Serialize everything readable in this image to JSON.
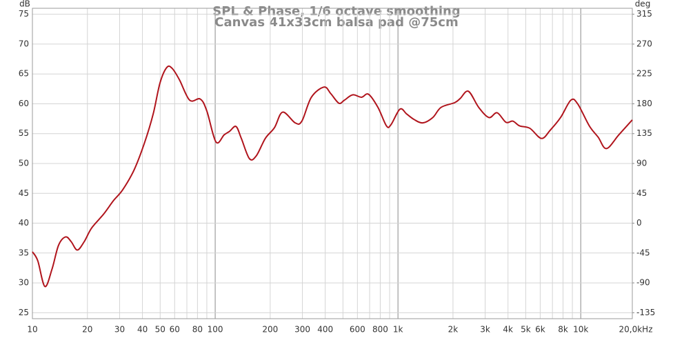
{
  "chart_data": {
    "type": "line",
    "title": "SPL & Phase, 1/6 octave smoothing",
    "subtitle": "Canvas 41x33cm balsa pad @75cm",
    "y_label": "dB",
    "y2_label": "deg",
    "xscale": "log",
    "grid": true,
    "xlim": [
      10,
      20000
    ],
    "ylim": [
      24,
      76
    ],
    "y2lim": [
      -144,
      324
    ],
    "xticks": [
      10,
      20,
      30,
      40,
      50,
      60,
      80,
      100,
      200,
      300,
      400,
      600,
      800,
      {
        "value": 1000,
        "label": "1k"
      },
      {
        "value": 2000,
        "label": "2k"
      },
      {
        "value": 3000,
        "label": "3k"
      },
      {
        "value": 4000,
        "label": "4k"
      },
      {
        "value": 5000,
        "label": "5k"
      },
      {
        "value": 6000,
        "label": "6k"
      },
      {
        "value": 8000,
        "label": "8k"
      },
      {
        "value": 10000,
        "label": "10k"
      },
      {
        "value": 20000,
        "label": "20,0kHz"
      }
    ],
    "xgrid_minor": [
      70,
      90,
      500,
      700,
      900,
      7000,
      9000
    ],
    "yticks": [
      25,
      30,
      35,
      40,
      45,
      50,
      55,
      60,
      65,
      70,
      75
    ],
    "y2ticks": [
      -135,
      -90,
      -45,
      0,
      45,
      90,
      135,
      180,
      225,
      270,
      315
    ],
    "x": [
      10,
      10.7,
      11.7,
      12.8,
      13.9,
      15.2,
      16.3,
      17.6,
      19.2,
      21.1,
      24.5,
      27.8,
      31.2,
      36.1,
      41.2,
      45.8,
      49.9,
      54.4,
      58.3,
      63.8,
      72.5,
      82.8,
      90,
      101,
      112,
      120,
      130,
      139,
      154,
      168,
      188,
      211,
      234,
      274,
      298,
      336,
      394,
      429,
      475,
      509,
      565,
      632,
      690,
      777,
      865,
      916,
      1025,
      1115,
      1221,
      1365,
      1551,
      1720,
      2045,
      2192,
      2429,
      2765,
      3147,
      3487,
      3898,
      4248,
      4628,
      5265,
      6095,
      6818,
      7757,
      8827,
      9615,
      11140,
      12460,
      13820,
      16160,
      19140
    ],
    "series": [
      {
        "name": "SPL",
        "color": "#b0141c",
        "values": [
          35.2,
          33.7,
          29.4,
          32.3,
          36.3,
          37.7,
          36.9,
          35.5,
          36.9,
          39.2,
          41.5,
          43.8,
          45.6,
          49.0,
          53.6,
          58.3,
          63.5,
          66.1,
          65.9,
          64.0,
          60.6,
          60.8,
          58.8,
          53.6,
          54.8,
          55.4,
          56.2,
          54.2,
          50.8,
          51.3,
          54.2,
          56.0,
          58.6,
          56.8,
          57.1,
          61.1,
          62.8,
          61.7,
          60.1,
          60.6,
          61.5,
          61.1,
          61.6,
          59.4,
          56.3,
          56.5,
          59.1,
          58.3,
          57.4,
          56.8,
          57.7,
          59.4,
          60.2,
          60.9,
          62.1,
          59.4,
          57.7,
          58.5,
          56.9,
          57.1,
          56.3,
          55.9,
          54.2,
          55.6,
          57.7,
          60.6,
          60.0,
          56.3,
          54.4,
          52.5,
          54.8,
          57.3
        ]
      }
    ]
  }
}
